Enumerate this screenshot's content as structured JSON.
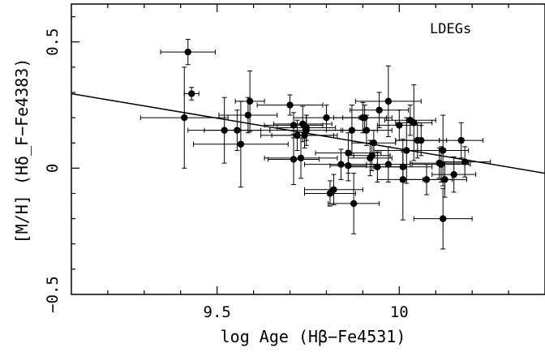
{
  "chart_data": {
    "type": "scatter",
    "annotation": "LDEGs",
    "xlabel": "log Age (Hβ−Fe4531)",
    "ylabel": "[M/H] (Hδ_F−Fe4383)",
    "xlim": [
      9.1,
      10.4
    ],
    "ylim": [
      -0.5,
      0.65
    ],
    "xticks": [
      9.5,
      10
    ],
    "xtick_labels": [
      "9.5",
      "10"
    ],
    "yticks": [
      -0.5,
      0,
      0.5
    ],
    "ytick_labels": [
      "−0.5",
      "0",
      "0.5"
    ],
    "grid": false,
    "fit_line": {
      "x": [
        9.1,
        10.4
      ],
      "y": [
        0.295,
        -0.02
      ]
    },
    "points": [
      {
        "x": 9.42,
        "y": 0.46,
        "xerr": 0.075,
        "yerr": 0.05
      },
      {
        "x": 9.43,
        "y": 0.295,
        "xerr": 0.02,
        "yerr": 0.025
      },
      {
        "x": 9.41,
        "y": 0.2,
        "xerr": 0.12,
        "yerr": 0.2
      },
      {
        "x": 9.52,
        "y": 0.15,
        "xerr": 0.1,
        "yerr": 0.13
      },
      {
        "x": 9.555,
        "y": 0.15,
        "xerr": 0.09,
        "yerr": 0.08
      },
      {
        "x": 9.565,
        "y": 0.095,
        "xerr": 0.13,
        "yerr": 0.17
      },
      {
        "x": 9.585,
        "y": 0.21,
        "xerr": 0.08,
        "yerr": 0.07
      },
      {
        "x": 9.59,
        "y": 0.265,
        "xerr": 0.04,
        "yerr": 0.12
      },
      {
        "x": 9.7,
        "y": 0.25,
        "xerr": 0.09,
        "yerr": 0.04
      },
      {
        "x": 9.71,
        "y": 0.17,
        "xerr": 0.08,
        "yerr": 0.05
      },
      {
        "x": 9.71,
        "y": 0.035,
        "xerr": 0.07,
        "yerr": 0.1
      },
      {
        "x": 9.72,
        "y": 0.13,
        "xerr": 0.1,
        "yerr": 0.06
      },
      {
        "x": 9.73,
        "y": 0.04,
        "xerr": 0.1,
        "yerr": 0.08
      },
      {
        "x": 9.735,
        "y": 0.175,
        "xerr": 0.08,
        "yerr": 0.07
      },
      {
        "x": 9.74,
        "y": 0.13,
        "xerr": 0.09,
        "yerr": 0.05
      },
      {
        "x": 9.745,
        "y": 0.15,
        "xerr": 0.1,
        "yerr": 0.06
      },
      {
        "x": 9.745,
        "y": 0.16,
        "xerr": 0.08,
        "yerr": 0.05
      },
      {
        "x": 9.8,
        "y": 0.2,
        "xerr": 0.09,
        "yerr": 0.05
      },
      {
        "x": 9.81,
        "y": -0.1,
        "xerr": 0.07,
        "yerr": 0.05
      },
      {
        "x": 9.82,
        "y": -0.085,
        "xerr": 0.08,
        "yerr": 0.06
      },
      {
        "x": 9.84,
        "y": 0.015,
        "xerr": 0.1,
        "yerr": 0.06
      },
      {
        "x": 9.86,
        "y": 0.06,
        "xerr": 0.09,
        "yerr": 0.08
      },
      {
        "x": 9.86,
        "y": 0.01,
        "xerr": 0.05,
        "yerr": 0.06
      },
      {
        "x": 9.87,
        "y": 0.15,
        "xerr": 0.07,
        "yerr": 0.1
      },
      {
        "x": 9.875,
        "y": -0.14,
        "xerr": 0.07,
        "yerr": 0.12
      },
      {
        "x": 9.9,
        "y": 0.2,
        "xerr": 0.08,
        "yerr": 0.06
      },
      {
        "x": 9.905,
        "y": 0.2,
        "xerr": 0.06,
        "yerr": 0.05
      },
      {
        "x": 9.91,
        "y": 0.15,
        "xerr": 0.07,
        "yerr": 0.06
      },
      {
        "x": 9.92,
        "y": 0.04,
        "xerr": 0.06,
        "yerr": 0.07
      },
      {
        "x": 9.925,
        "y": 0.05,
        "xerr": 0.05,
        "yerr": 0.06
      },
      {
        "x": 9.93,
        "y": 0.1,
        "xerr": 0.06,
        "yerr": 0.05
      },
      {
        "x": 9.94,
        "y": 0.005,
        "xerr": 0.08,
        "yerr": 0.06
      },
      {
        "x": 9.945,
        "y": 0.23,
        "xerr": 0.08,
        "yerr": 0.07
      },
      {
        "x": 9.97,
        "y": 0.265,
        "xerr": 0.09,
        "yerr": 0.14
      },
      {
        "x": 9.97,
        "y": 0.015,
        "xerr": 0.06,
        "yerr": 0.07
      },
      {
        "x": 10.0,
        "y": 0.17,
        "xerr": 0.06,
        "yerr": 0.06
      },
      {
        "x": 10.01,
        "y": 0.005,
        "xerr": 0.08,
        "yerr": 0.06
      },
      {
        "x": 10.01,
        "y": -0.045,
        "xerr": 0.07,
        "yerr": 0.16
      },
      {
        "x": 10.02,
        "y": 0.07,
        "xerr": 0.09,
        "yerr": 0.13
      },
      {
        "x": 10.03,
        "y": 0.19,
        "xerr": 0.07,
        "yerr": 0.06
      },
      {
        "x": 10.04,
        "y": 0.18,
        "xerr": 0.05,
        "yerr": 0.15
      },
      {
        "x": 10.05,
        "y": 0.11,
        "xerr": 0.06,
        "yerr": 0.07
      },
      {
        "x": 10.06,
        "y": 0.11,
        "xerr": 0.07,
        "yerr": 0.06
      },
      {
        "x": 10.075,
        "y": -0.045,
        "xerr": 0.07,
        "yerr": 0.06
      },
      {
        "x": 10.11,
        "y": 0.02,
        "xerr": 0.08,
        "yerr": 0.06
      },
      {
        "x": 10.115,
        "y": 0.015,
        "xerr": 0.08,
        "yerr": 0.07
      },
      {
        "x": 10.12,
        "y": 0.07,
        "xerr": 0.07,
        "yerr": 0.14
      },
      {
        "x": 10.12,
        "y": -0.2,
        "xerr": 0.08,
        "yerr": 0.12
      },
      {
        "x": 10.125,
        "y": -0.045,
        "xerr": 0.06,
        "yerr": 0.07
      },
      {
        "x": 10.15,
        "y": -0.025,
        "xerr": 0.06,
        "yerr": 0.07
      },
      {
        "x": 10.17,
        "y": 0.11,
        "xerr": 0.06,
        "yerr": 0.07
      },
      {
        "x": 10.18,
        "y": 0.025,
        "xerr": 0.07,
        "yerr": 0.06
      }
    ]
  }
}
